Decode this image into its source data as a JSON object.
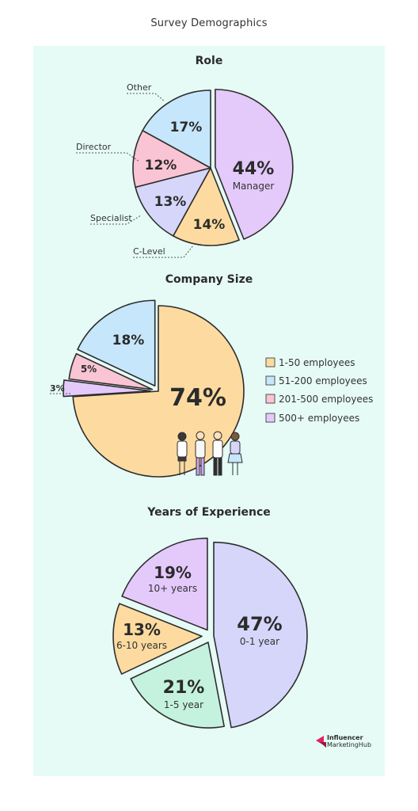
{
  "page_title": "Survey Demographics",
  "colors": {
    "panel_bg": "#e6fbf5",
    "purple": "#e4c9fb",
    "orange": "#fddba0",
    "lavender": "#d6d6fb",
    "pink": "#f9c4d4",
    "blue": "#c6e6fb",
    "mint": "#c4f2df",
    "stroke": "#2d2d2d"
  },
  "chart_data": [
    {
      "type": "pie",
      "title": "Role",
      "slices": [
        {
          "label": "Manager",
          "value": 44,
          "value_label": "44%",
          "color": "#e4c9fb"
        },
        {
          "label": "C-Level",
          "value": 14,
          "value_label": "14%",
          "color": "#fddba0"
        },
        {
          "label": "Specialist",
          "value": 13,
          "value_label": "13%",
          "color": "#d6d6fb"
        },
        {
          "label": "Director",
          "value": 12,
          "value_label": "12%",
          "color": "#f9c4d4"
        },
        {
          "label": "Other",
          "value": 17,
          "value_label": "17%",
          "color": "#c6e6fb"
        }
      ]
    },
    {
      "type": "pie",
      "title": "Company Size",
      "slices": [
        {
          "label": "1-50 employees",
          "value": 74,
          "value_label": "74%",
          "color": "#fddba0"
        },
        {
          "label": "500+ employees",
          "value": 3,
          "value_label": "3%",
          "color": "#e4c9fb"
        },
        {
          "label": "201-500 employees",
          "value": 5,
          "value_label": "5%",
          "color": "#f9c4d4"
        },
        {
          "label": "51-200 employees",
          "value": 18,
          "value_label": "18%",
          "color": "#c6e6fb"
        }
      ],
      "legend": {
        "placement": "right",
        "items": [
          {
            "label": "1-50 employees",
            "color": "#fddba0"
          },
          {
            "label": "51-200 employees",
            "color": "#c6e6fb"
          },
          {
            "label": "201-500 employees",
            "color": "#f9c4d4"
          },
          {
            "label": "500+ employees",
            "color": "#e4c9fb"
          }
        ]
      }
    },
    {
      "type": "pie",
      "title": "Years of Experience",
      "slices": [
        {
          "label": "0-1 year",
          "value": 47,
          "value_label": "47%",
          "color": "#d6d6fb"
        },
        {
          "label": "1-5 year",
          "value": 21,
          "value_label": "21%",
          "color": "#c4f2df"
        },
        {
          "label": "6-10 years",
          "value": 13,
          "value_label": "13%",
          "color": "#fddba0"
        },
        {
          "label": "10+ years",
          "value": 19,
          "value_label": "19%",
          "color": "#e4c9fb"
        }
      ]
    }
  ],
  "brand": {
    "line1": "Influencer",
    "line2": "MarketingHub",
    "logo_icon": "influencer-marketing-hub-logo"
  }
}
